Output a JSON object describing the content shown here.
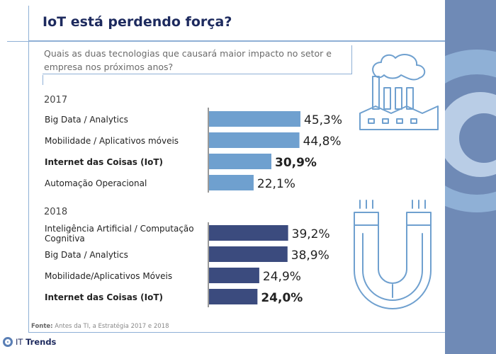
{
  "header": {
    "title": "IoT está perdendo força?"
  },
  "question": "Quais as duas tecnologias que causará maior impacto no setor e empresa nos próximos anos?",
  "colors": {
    "bar_2017": "#6fa0cf",
    "bar_2018": "#3b4b7e",
    "accent": "#8fb0d6",
    "title": "#1d2a5e"
  },
  "chart_data": [
    {
      "type": "bar",
      "orientation": "horizontal",
      "group_label": "2017",
      "categories": [
        "Big Data / Analytics",
        "Mobilidade / Aplicativos móveis",
        "Internet das Coisas (IoT)",
        "Automação Operacional"
      ],
      "values": [
        45.3,
        44.8,
        30.9,
        22.1
      ],
      "value_labels": [
        "45,3%",
        "44,8%",
        "30,9%",
        "22,1%"
      ],
      "highlight": [
        false,
        false,
        true,
        false
      ],
      "color": "#6fa0cf"
    },
    {
      "type": "bar",
      "orientation": "horizontal",
      "group_label": "2018",
      "categories": [
        "Inteligência Artificial / Computação Cognitiva",
        "Big Data / Analytics",
        "Mobilidade/Aplicativos Móveis",
        "Internet das Coisas (IoT)"
      ],
      "values": [
        39.2,
        38.9,
        24.9,
        24.0
      ],
      "value_labels": [
        "39,2%",
        "38,9%",
        "24,9%",
        "24,0%"
      ],
      "highlight": [
        false,
        false,
        false,
        true
      ],
      "color": "#3b4b7e"
    }
  ],
  "icons": [
    "factory-icon",
    "magnet-icon"
  ],
  "source": {
    "label": "Fonte:",
    "text": "Antes da TI, a Estratégia 2017 e 2018"
  },
  "brand": {
    "prefix": "IT",
    "name": "Trends"
  }
}
